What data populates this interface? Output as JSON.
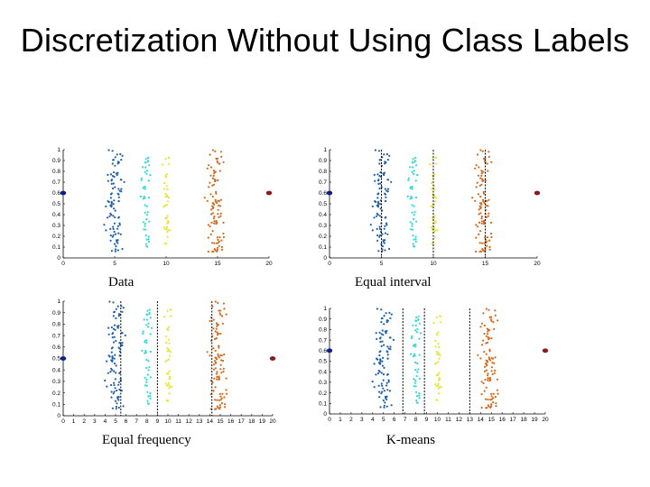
{
  "slide": {
    "title": "Discretization Without Using Class Labels"
  },
  "captions": [
    "Data",
    "Equal interval",
    "Equal frequency",
    "K-means"
  ],
  "colors": {
    "blue": "#1f5fa8",
    "cyan": "#36d6d6",
    "yellow": "#e6e63a",
    "orange": "#d2691e",
    "navy": "#0b1f8a",
    "darkred": "#8b1a1a"
  },
  "chart_data": [
    {
      "type": "scatter",
      "title": "Data",
      "xlim": [
        0,
        20
      ],
      "ylim": [
        0,
        1
      ],
      "x_ticks": [
        0,
        5,
        10,
        15,
        20
      ],
      "y_ticks": [
        0,
        0.1,
        0.2,
        0.3,
        0.4,
        0.5,
        0.6,
        0.7,
        0.8,
        0.9,
        1
      ],
      "clusters": [
        {
          "color": "blue",
          "x_center": 5.0,
          "x_spread": 0.9,
          "y_range": [
            0.05,
            1.0
          ],
          "count": 95
        },
        {
          "color": "cyan",
          "x_center": 8.0,
          "x_spread": 0.5,
          "y_range": [
            0.1,
            0.95
          ],
          "count": 45
        },
        {
          "color": "yellow",
          "x_center": 10.0,
          "x_spread": 0.4,
          "y_range": [
            0.1,
            0.93
          ],
          "count": 40
        },
        {
          "color": "orange",
          "x_center": 14.8,
          "x_spread": 0.9,
          "y_range": [
            0.05,
            1.0
          ],
          "count": 95
        }
      ],
      "outliers": [
        {
          "color": "navy",
          "x": 0,
          "y": 0.6
        },
        {
          "color": "darkred",
          "x": 20,
          "y": 0.6
        }
      ],
      "cut_points": []
    },
    {
      "type": "scatter",
      "title": "Equal interval",
      "xlim": [
        0,
        20
      ],
      "ylim": [
        0,
        1
      ],
      "x_ticks": [
        0,
        5,
        10,
        15,
        20
      ],
      "y_ticks": [
        0,
        0.1,
        0.2,
        0.3,
        0.4,
        0.5,
        0.6,
        0.7,
        0.8,
        0.9,
        1
      ],
      "clusters": [
        {
          "color": "blue",
          "x_center": 5.0,
          "x_spread": 0.9,
          "y_range": [
            0.05,
            1.0
          ],
          "count": 95
        },
        {
          "color": "cyan",
          "x_center": 8.0,
          "x_spread": 0.5,
          "y_range": [
            0.1,
            0.95
          ],
          "count": 45
        },
        {
          "color": "yellow",
          "x_center": 10.0,
          "x_spread": 0.4,
          "y_range": [
            0.1,
            0.93
          ],
          "count": 40
        },
        {
          "color": "orange",
          "x_center": 14.8,
          "x_spread": 0.9,
          "y_range": [
            0.05,
            1.0
          ],
          "count": 95
        }
      ],
      "outliers": [
        {
          "color": "navy",
          "x": 0,
          "y": 0.6
        },
        {
          "color": "darkred",
          "x": 20,
          "y": 0.6
        }
      ],
      "cut_points": [
        5,
        10,
        15
      ]
    },
    {
      "type": "scatter",
      "title": "Equal frequency",
      "xlim": [
        0,
        20
      ],
      "ylim": [
        0,
        1
      ],
      "x_ticks": [
        0,
        1,
        2,
        3,
        4,
        5,
        6,
        7,
        8,
        9,
        10,
        11,
        12,
        13,
        14,
        15,
        16,
        17,
        18,
        19,
        20
      ],
      "y_ticks": [
        0,
        0.1,
        0.2,
        0.3,
        0.4,
        0.5,
        0.6,
        0.7,
        0.8,
        0.9,
        1
      ],
      "clusters": [
        {
          "color": "blue",
          "x_center": 5.0,
          "x_spread": 0.9,
          "y_range": [
            0.05,
            1.0
          ],
          "count": 95
        },
        {
          "color": "cyan",
          "x_center": 8.0,
          "x_spread": 0.5,
          "y_range": [
            0.1,
            0.95
          ],
          "count": 45
        },
        {
          "color": "yellow",
          "x_center": 10.0,
          "x_spread": 0.4,
          "y_range": [
            0.1,
            0.93
          ],
          "count": 40
        },
        {
          "color": "orange",
          "x_center": 14.8,
          "x_spread": 0.9,
          "y_range": [
            0.05,
            1.0
          ],
          "count": 95
        }
      ],
      "outliers": [
        {
          "color": "navy",
          "x": 0,
          "y": 0.5
        },
        {
          "color": "darkred",
          "x": 20,
          "y": 0.5
        }
      ],
      "cut_points": [
        5.5,
        9,
        14.2
      ]
    },
    {
      "type": "scatter",
      "title": "K-means",
      "xlim": [
        0,
        20
      ],
      "ylim": [
        0,
        1
      ],
      "x_ticks": [
        0,
        1,
        2,
        3,
        4,
        5,
        6,
        7,
        8,
        9,
        10,
        11,
        12,
        13,
        14,
        15,
        16,
        17,
        18,
        19,
        20
      ],
      "y_ticks": [
        0,
        0.1,
        0.2,
        0.3,
        0.4,
        0.5,
        0.6,
        0.7,
        0.8,
        0.9,
        1
      ],
      "clusters": [
        {
          "color": "blue",
          "x_center": 5.0,
          "x_spread": 0.9,
          "y_range": [
            0.05,
            1.0
          ],
          "count": 95
        },
        {
          "color": "cyan",
          "x_center": 8.0,
          "x_spread": 0.5,
          "y_range": [
            0.1,
            0.95
          ],
          "count": 45
        },
        {
          "color": "yellow",
          "x_center": 10.0,
          "x_spread": 0.4,
          "y_range": [
            0.1,
            0.93
          ],
          "count": 40
        },
        {
          "color": "orange",
          "x_center": 14.8,
          "x_spread": 0.9,
          "y_range": [
            0.05,
            1.0
          ],
          "count": 95
        }
      ],
      "outliers": [
        {
          "color": "navy",
          "x": 0,
          "y": 0.6
        },
        {
          "color": "darkred",
          "x": 20,
          "y": 0.6
        }
      ],
      "cut_points": [
        6.8,
        8.8,
        13
      ]
    }
  ]
}
